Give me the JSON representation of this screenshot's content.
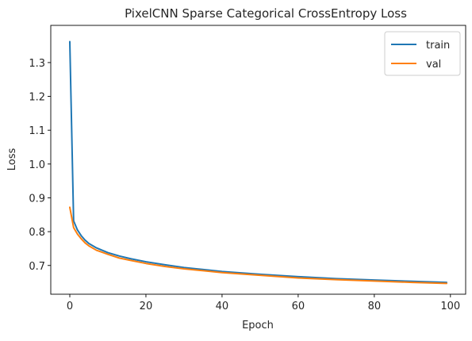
{
  "chart_data": {
    "type": "line",
    "title": "PixelCNN Sparse Categorical CrossEntropy Loss",
    "xlabel": "Epoch",
    "ylabel": "Loss",
    "xlim": [
      -5,
      104
    ],
    "ylim": [
      0.615,
      1.41
    ],
    "xticks": [
      0,
      20,
      40,
      60,
      80,
      100
    ],
    "yticks": [
      0.7,
      0.8,
      0.9,
      1.0,
      1.1,
      1.2,
      1.3
    ],
    "ytick_labels": [
      "0.7",
      "0.8",
      "0.9",
      "1.0",
      "1.1",
      "1.2",
      "1.3"
    ],
    "legend_position": "top-right",
    "grid": false,
    "series": [
      {
        "name": "train",
        "color": "#1f77b4",
        "x": [
          0,
          1,
          2,
          3,
          4,
          5,
          7,
          10,
          13,
          16,
          20,
          25,
          30,
          40,
          50,
          60,
          70,
          80,
          90,
          99
        ],
        "y": [
          1.362,
          0.832,
          0.805,
          0.788,
          0.775,
          0.765,
          0.752,
          0.738,
          0.728,
          0.72,
          0.711,
          0.702,
          0.694,
          0.682,
          0.674,
          0.667,
          0.661,
          0.657,
          0.653,
          0.65
        ]
      },
      {
        "name": "val",
        "color": "#ff7f0e",
        "x": [
          0,
          1,
          2,
          3,
          4,
          5,
          7,
          10,
          13,
          16,
          20,
          25,
          30,
          40,
          50,
          60,
          70,
          80,
          90,
          99
        ],
        "y": [
          0.872,
          0.812,
          0.793,
          0.779,
          0.767,
          0.758,
          0.745,
          0.733,
          0.722,
          0.715,
          0.706,
          0.697,
          0.69,
          0.679,
          0.671,
          0.663,
          0.658,
          0.654,
          0.65,
          0.647
        ]
      }
    ]
  }
}
